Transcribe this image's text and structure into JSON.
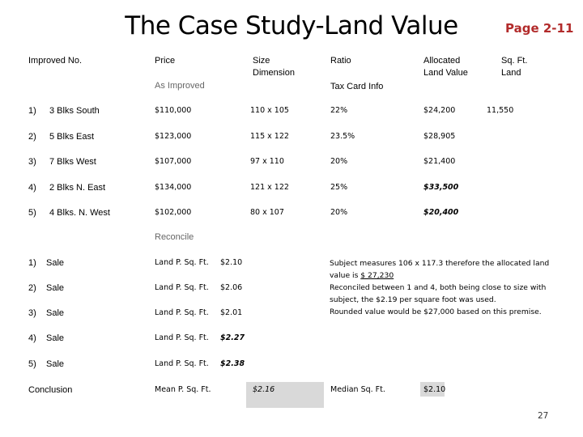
{
  "title": "The Case Study-Land Value",
  "page_label": "Page 2-11",
  "headers": {
    "improved_no": "Improved No.",
    "price": "Price",
    "size_dimension": [
      "Size",
      "Dimension"
    ],
    "ratio": "Ratio",
    "allocated": [
      "Allocated",
      "Land Value"
    ],
    "sqft": [
      "Sq. Ft.",
      "Land"
    ]
  },
  "sub_headers": {
    "as_improved": "As Improved",
    "tax_card": "Tax Card Info"
  },
  "rows": [
    {
      "num": "1)",
      "loc": "3 Blks South",
      "price": "$110,000",
      "size": "110 x 105",
      "ratio": "22%",
      "alloc": "$24,200",
      "sqft": "11,550"
    },
    {
      "num": "2)",
      "loc": "5 Blks East",
      "price": "$123,000",
      "size": "115 x 122",
      "ratio": "23.5%",
      "alloc": "$28,905",
      "sqft": ""
    },
    {
      "num": "3)",
      "loc": "7 Blks West",
      "price": "$107,000",
      "size": "97 x 110",
      "ratio": "20%",
      "alloc": "$21,400",
      "sqft": ""
    },
    {
      "num": "4)",
      "loc": "2 Blks N. East",
      "price": "$134,000",
      "size": "121 x 122",
      "ratio": "25%",
      "alloc": "$33,500",
      "sqft": ""
    },
    {
      "num": "5)",
      "loc": "4 Blks.  N. West",
      "price": "$102,000",
      "size": "80 x 107",
      "ratio": "20%",
      "alloc": "$20,400",
      "sqft": ""
    }
  ],
  "reconcile_label": "Reconcile",
  "sales": [
    {
      "num": "1)",
      "label": "Sale",
      "metric": "Land P. Sq. Ft.",
      "value": "$2.10"
    },
    {
      "num": "2)",
      "label": "Sale",
      "metric": "Land P. Sq. Ft.",
      "value": "$2.06"
    },
    {
      "num": "3)",
      "label": "Sale",
      "metric": "Land P. Sq. Ft.",
      "value": "$2.01"
    },
    {
      "num": "4)",
      "label": "Sale",
      "metric": "Land P. Sq. Ft.",
      "value": "$2.27"
    },
    {
      "num": "5)",
      "label": "Sale",
      "metric": "Land P. Sq. Ft.",
      "value": "$2.38"
    }
  ],
  "note": {
    "line1": "Subject measures 106 x 117.3 therefore the allocated land",
    "line2_prefix": "value is ",
    "line2_value": "$  27,230    ",
    "line3": "Reconciled between 1 and 4, both being close to size with",
    "line4": "subject, the $2.19 per square foot was used.",
    "line5": "Rounded value would be $27,000 based on this premise."
  },
  "conclusion": {
    "label": "Conclusion",
    "mean_label": "Mean P. Sq. Ft.",
    "mean_value": "$2.16",
    "median_label": "Median Sq. Ft.",
    "median_value": "$2.10"
  },
  "page_number": "27"
}
